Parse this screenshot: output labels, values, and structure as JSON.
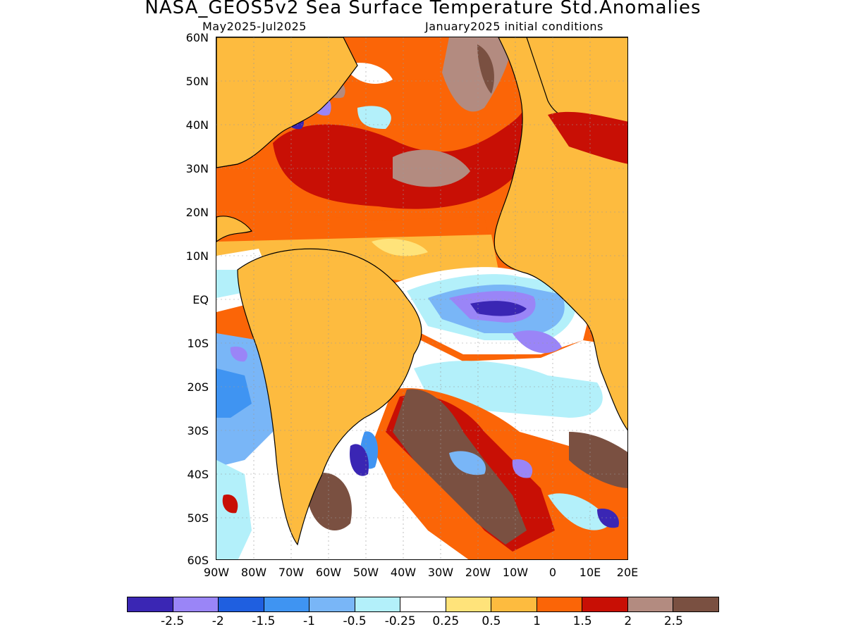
{
  "title": "NASA_GEOS5v2 Sea Surface Temperature Std.Anomalies",
  "subtitle_left": "May2025-Jul2025",
  "subtitle_right": "January2025 initial conditions",
  "lat_labels": [
    "60N",
    "50N",
    "40N",
    "30N",
    "20N",
    "10N",
    "EQ",
    "10S",
    "20S",
    "30S",
    "40S",
    "50S",
    "60S"
  ],
  "lon_labels": [
    "90W",
    "80W",
    "70W",
    "60W",
    "50W",
    "40W",
    "30W",
    "20W",
    "10W",
    "0",
    "10E",
    "20E"
  ],
  "colorbar": {
    "colors": [
      "#3a26b4",
      "#9a85f7",
      "#1f5fe0",
      "#3f94f2",
      "#79b6f7",
      "#b3f0fa",
      "#ffffff",
      "#ffe37a",
      "#fdbb3f",
      "#fb6507",
      "#c80f05",
      "#b38b80",
      "#7a5041"
    ],
    "labels": [
      "-2.5",
      "-2",
      "-1.5",
      "-1",
      "-0.5",
      "-0.25",
      "0.25",
      "0.5",
      "1",
      "1.5",
      "2",
      "2.5"
    ]
  },
  "land_color": "#fdbb3f"
}
